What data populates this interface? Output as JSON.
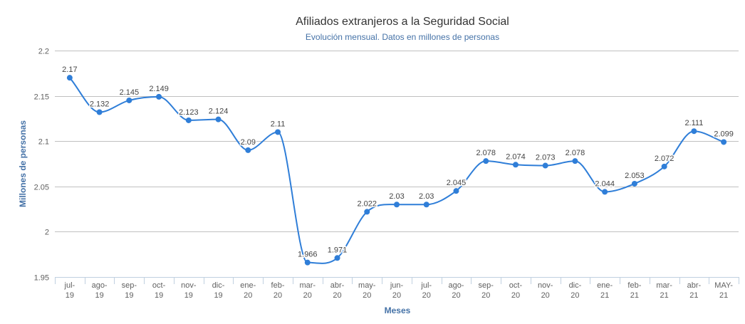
{
  "chart_data": {
    "type": "line",
    "title": "Afiliados extranjeros a la Seguridad Social",
    "subtitle": "Evolución mensual. Datos en millones de personas",
    "xlabel": "Meses",
    "ylabel": "Millones de personas",
    "ylim": [
      1.95,
      2.2
    ],
    "yticks": [
      "1.95",
      "2",
      "2.05",
      "2.1",
      "2.15",
      "2.2"
    ],
    "grid": true,
    "legend": "none",
    "categories": [
      [
        "jul-",
        "19"
      ],
      [
        "ago-",
        "19"
      ],
      [
        "sep-",
        "19"
      ],
      [
        "oct-",
        "19"
      ],
      [
        "nov-",
        "19"
      ],
      [
        "dic-",
        "19"
      ],
      [
        "ene-",
        "20"
      ],
      [
        "feb-",
        "20"
      ],
      [
        "mar-",
        "20"
      ],
      [
        "abr-",
        "20"
      ],
      [
        "may-",
        "20"
      ],
      [
        "jun-",
        "20"
      ],
      [
        "jul-",
        "20"
      ],
      [
        "ago-",
        "20"
      ],
      [
        "sep-",
        "20"
      ],
      [
        "oct-",
        "20"
      ],
      [
        "nov-",
        "20"
      ],
      [
        "dic-",
        "20"
      ],
      [
        "ene-",
        "21"
      ],
      [
        "feb-",
        "21"
      ],
      [
        "mar-",
        "21"
      ],
      [
        "abr-",
        "21"
      ],
      [
        "MAY-",
        "21"
      ]
    ],
    "values": [
      2.17,
      2.132,
      2.145,
      2.149,
      2.123,
      2.124,
      2.09,
      2.11,
      1.966,
      1.971,
      2.022,
      2.03,
      2.03,
      2.045,
      2.078,
      2.074,
      2.073,
      2.078,
      2.044,
      2.053,
      2.072,
      2.111,
      2.099
    ],
    "labels": [
      "2.17",
      "2.132",
      "2.145",
      "2.149",
      "2.123",
      "2.124",
      "2.09",
      "2.11",
      "1.966",
      "1.971",
      "2.022",
      "2.03",
      "2.03",
      "2.045",
      "2.078",
      "2.074",
      "2.073",
      "2.078",
      "2.044",
      "2.053",
      "2.072",
      "2.111",
      "2.099"
    ],
    "colors": {
      "series": "#2f7ed8",
      "text": "#333333",
      "accent": "#4572a7",
      "grid": "#c0c0c0"
    }
  }
}
